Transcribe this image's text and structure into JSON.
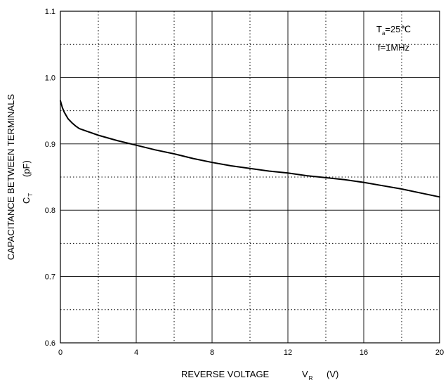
{
  "chart_data": {
    "type": "line",
    "title": "",
    "xlabel": "REVERSE VOLTAGE",
    "xlabel_symbol": "V",
    "xlabel_sub": "R",
    "xlabel_unit": "(V)",
    "ylabel": "CAPACITANCE BETWEEN TERMINALS",
    "ylabel_symbol": "C",
    "ylabel_sub": "T",
    "ylabel_unit": "(pF)",
    "xlim": [
      0,
      20
    ],
    "ylim": [
      0.6,
      1.1
    ],
    "xticks": [
      0,
      4,
      8,
      12,
      16,
      20
    ],
    "xtick_labels": [
      "0",
      "4",
      "8",
      "12",
      "16",
      "20"
    ],
    "yticks": [
      0.6,
      0.7,
      0.8,
      0.9,
      1.0,
      1.1
    ],
    "ytick_labels": [
      "0.6",
      "0.7",
      "0.8",
      "0.9",
      "1.0",
      "1.1"
    ],
    "grid_major": true,
    "grid_minor_dotted": true,
    "annotations": [
      {
        "symbol": "T",
        "sub": "a",
        "text": "=25℃"
      },
      {
        "symbol": "",
        "sub": "",
        "text": "f=1MHz"
      }
    ],
    "series": [
      {
        "x": [
          0,
          0.1,
          0.2,
          0.4,
          0.6,
          0.8,
          1.0,
          1.5,
          2,
          3,
          4,
          5,
          6,
          7,
          8,
          9,
          10,
          11,
          12,
          13,
          14,
          15,
          16,
          17,
          18,
          19,
          20
        ],
        "y": [
          0.965,
          0.955,
          0.948,
          0.938,
          0.932,
          0.927,
          0.923,
          0.918,
          0.913,
          0.905,
          0.898,
          0.891,
          0.885,
          0.878,
          0.872,
          0.867,
          0.863,
          0.859,
          0.856,
          0.852,
          0.849,
          0.846,
          0.842,
          0.837,
          0.832,
          0.826,
          0.82
        ]
      }
    ]
  }
}
